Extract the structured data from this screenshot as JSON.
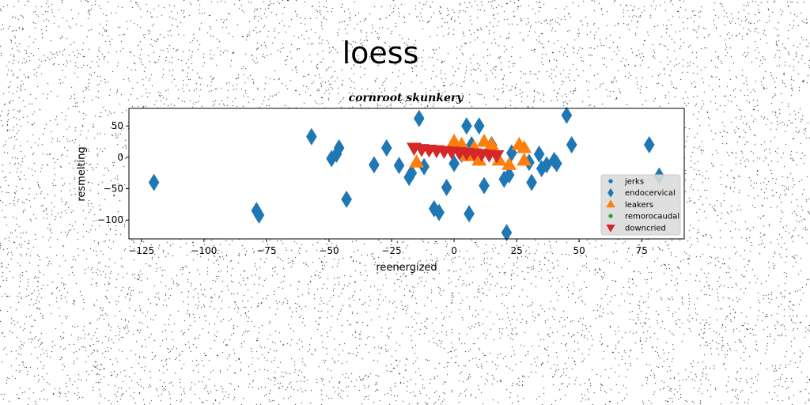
{
  "suptitle": "loess",
  "chart_data": {
    "type": "scatter",
    "title": "cornroot skunkery",
    "xlabel": "reenergized",
    "ylabel": "resmelting",
    "xlim": [
      -130,
      92
    ],
    "ylim": [
      -130,
      78
    ],
    "xticks": [
      -125,
      -100,
      -75,
      -50,
      -25,
      0,
      25,
      50,
      75
    ],
    "yticks": [
      -100,
      -50,
      0,
      50
    ],
    "grid": false,
    "legend_position": "lower-right",
    "series": [
      {
        "name": "jerks",
        "marker": "circle",
        "color": "#1f77b4",
        "points": []
      },
      {
        "name": "endocervical",
        "marker": "diamond",
        "color": "#1f77b4",
        "points": [
          [
            -120,
            -40
          ],
          [
            -79,
            -85
          ],
          [
            -78,
            -92
          ],
          [
            -57,
            33
          ],
          [
            -49,
            -2
          ],
          [
            -47,
            5
          ],
          [
            -46,
            15
          ],
          [
            -43,
            -67
          ],
          [
            -32,
            -12
          ],
          [
            -27,
            15
          ],
          [
            -22,
            -13
          ],
          [
            -18,
            -32
          ],
          [
            -17,
            -25
          ],
          [
            -14,
            62
          ],
          [
            -12,
            -15
          ],
          [
            -8,
            -82
          ],
          [
            -6,
            -88
          ],
          [
            -3,
            -48
          ],
          [
            0,
            -10
          ],
          [
            3,
            5
          ],
          [
            5,
            50
          ],
          [
            6,
            -90
          ],
          [
            7,
            20
          ],
          [
            10,
            50
          ],
          [
            10,
            0
          ],
          [
            12,
            -45
          ],
          [
            15,
            20
          ],
          [
            20,
            -35
          ],
          [
            22,
            -28
          ],
          [
            21,
            -120
          ],
          [
            23,
            7
          ],
          [
            30,
            -8
          ],
          [
            31,
            -40
          ],
          [
            34,
            5
          ],
          [
            35,
            -18
          ],
          [
            37,
            -12
          ],
          [
            40,
            -5
          ],
          [
            41,
            -10
          ],
          [
            45,
            67
          ],
          [
            47,
            20
          ],
          [
            78,
            20
          ],
          [
            82,
            -30
          ]
        ]
      },
      {
        "name": "leakers",
        "marker": "triangle-up",
        "color": "#ff7f0e",
        "points": [
          [
            -15,
            -8
          ],
          [
            0,
            25
          ],
          [
            3,
            20
          ],
          [
            5,
            2
          ],
          [
            8,
            15
          ],
          [
            10,
            -5
          ],
          [
            12,
            25
          ],
          [
            15,
            20
          ],
          [
            18,
            -5
          ],
          [
            22,
            -12
          ],
          [
            26,
            20
          ],
          [
            28,
            15
          ],
          [
            28,
            -5
          ]
        ]
      },
      {
        "name": "remorocaudal",
        "marker": "circle",
        "color": "#2ca02c",
        "points": []
      },
      {
        "name": "downcried",
        "marker": "triangle-down",
        "color": "#d62728",
        "points": [
          [
            -16,
            15
          ],
          [
            -13,
            13
          ],
          [
            -10,
            12
          ],
          [
            -7,
            11
          ],
          [
            -4,
            10
          ],
          [
            -1,
            9
          ],
          [
            2,
            8
          ],
          [
            5,
            7
          ],
          [
            8,
            6
          ],
          [
            11,
            5
          ],
          [
            14,
            4
          ],
          [
            17,
            3
          ]
        ]
      }
    ]
  }
}
